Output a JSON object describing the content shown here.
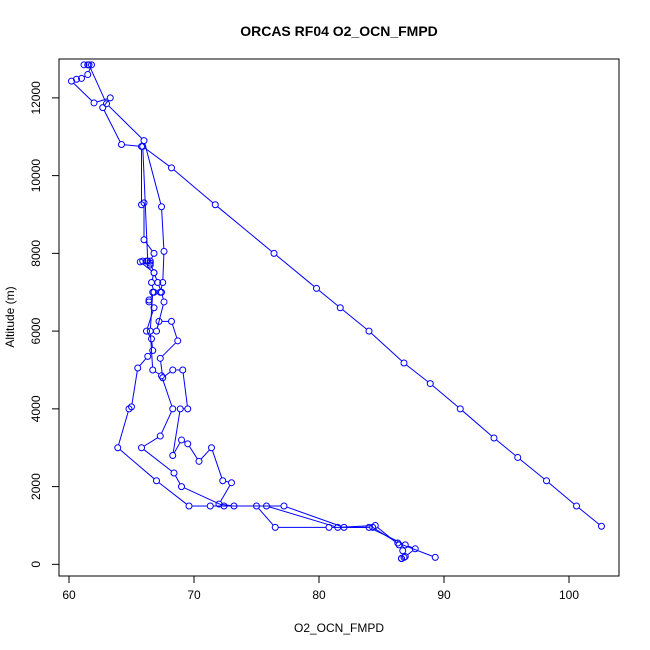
{
  "chart_data": {
    "type": "line",
    "title": "ORCAS RF04 O2_OCN_FMPD",
    "xlabel": "O2_OCN_FMPD",
    "ylabel": "Altitude (m)",
    "xlim": [
      59.2,
      104.0
    ],
    "ylim": [
      -300,
      13000
    ],
    "x_ticks": [
      60,
      70,
      80,
      90,
      100
    ],
    "y_ticks": [
      0,
      2000,
      4000,
      6000,
      8000,
      10000,
      12000
    ],
    "grid": false,
    "color": "#0000ff",
    "markers": "open-circle",
    "series": [
      {
        "points": [
          [
            61.2,
            12850
          ],
          [
            61.5,
            12850
          ],
          [
            61.8,
            12850
          ],
          [
            61.5,
            12600
          ],
          [
            61.0,
            12500
          ],
          [
            60.6,
            12480
          ],
          [
            60.2,
            12430
          ],
          [
            62.0,
            11870
          ],
          [
            63.3,
            12000
          ],
          [
            62.7,
            11750
          ],
          [
            64.2,
            10800
          ],
          [
            65.8,
            10750
          ],
          [
            65.8,
            9250
          ],
          [
            66.0,
            9300
          ],
          [
            66.0,
            8350
          ],
          [
            66.8,
            8000
          ],
          [
            66.5,
            7800
          ],
          [
            66.2,
            7800
          ],
          [
            66.5,
            7700
          ],
          [
            65.9,
            7800
          ],
          [
            65.7,
            7780
          ],
          [
            66.8,
            7500
          ],
          [
            66.6,
            7250
          ],
          [
            66.8,
            7000
          ],
          [
            66.4,
            6800
          ],
          [
            66.4,
            6750
          ],
          [
            66.8,
            6600
          ],
          [
            66.2,
            6000
          ],
          [
            66.6,
            5800
          ],
          [
            66.7,
            5500
          ],
          [
            66.3,
            5350
          ],
          [
            65.5,
            5050
          ],
          [
            65.0,
            4050
          ],
          [
            64.8,
            4000
          ],
          [
            63.9,
            3000
          ],
          [
            67.0,
            2150
          ],
          [
            69.6,
            1500
          ],
          [
            71.3,
            1500
          ],
          [
            75.8,
            1500
          ],
          [
            81.5,
            950
          ],
          [
            84.5,
            1000
          ],
          [
            86.4,
            500
          ],
          [
            86.7,
            350
          ],
          [
            86.8,
            180
          ],
          [
            86.6,
            150
          ]
        ]
      },
      {
        "points": [
          [
            86.6,
            150
          ],
          [
            86.9,
            200
          ],
          [
            87.7,
            400
          ],
          [
            86.9,
            500
          ],
          [
            84.0,
            950
          ],
          [
            80.8,
            950
          ],
          [
            76.5,
            950
          ],
          [
            75.0,
            1500
          ],
          [
            72.4,
            1500
          ],
          [
            69.0,
            2000
          ],
          [
            68.4,
            2350
          ],
          [
            65.8,
            3000
          ],
          [
            67.3,
            3300
          ],
          [
            68.3,
            4000
          ],
          [
            67.4,
            4850
          ],
          [
            66.7,
            5000
          ],
          [
            66.5,
            6000
          ],
          [
            66.7,
            7000
          ],
          [
            67.3,
            7000
          ],
          [
            67.5,
            7250
          ],
          [
            67.6,
            8050
          ],
          [
            67.4,
            9200
          ],
          [
            66.0,
            10900
          ],
          [
            63.0,
            11850
          ],
          [
            61.6,
            12850
          ]
        ]
      },
      {
        "points": [
          [
            89.3,
            180
          ],
          [
            86.3,
            550
          ],
          [
            84.3,
            950
          ],
          [
            82.0,
            950
          ],
          [
            77.2,
            1500
          ],
          [
            73.2,
            1500
          ],
          [
            72.0,
            1550
          ],
          [
            73.0,
            2100
          ],
          [
            72.3,
            2150
          ],
          [
            71.4,
            3000
          ],
          [
            70.4,
            2650
          ],
          [
            69.5,
            3100
          ],
          [
            69.0,
            3200
          ],
          [
            68.3,
            2800
          ],
          [
            68.9,
            4000
          ],
          [
            69.5,
            4000
          ],
          [
            69.1,
            5000
          ],
          [
            68.3,
            5000
          ],
          [
            67.5,
            4800
          ],
          [
            67.3,
            5300
          ],
          [
            68.7,
            5750
          ],
          [
            68.2,
            6250
          ],
          [
            67.2,
            6250
          ],
          [
            67.0,
            6000
          ],
          [
            67.6,
            6750
          ],
          [
            67.4,
            7000
          ],
          [
            67.1,
            7250
          ],
          [
            66.8,
            7500
          ],
          [
            66.5,
            7750
          ],
          [
            66.3,
            7800
          ],
          [
            65.9,
            10750
          ],
          [
            68.2,
            10200
          ],
          [
            71.7,
            9250
          ],
          [
            76.4,
            8000
          ],
          [
            79.8,
            7100
          ],
          [
            81.7,
            6600
          ],
          [
            84.0,
            6000
          ],
          [
            86.8,
            5180
          ],
          [
            88.9,
            4650
          ],
          [
            91.3,
            4000
          ],
          [
            94.0,
            3250
          ],
          [
            95.9,
            2750
          ],
          [
            98.2,
            2150
          ],
          [
            100.6,
            1500
          ],
          [
            102.6,
            980
          ]
        ]
      }
    ]
  }
}
